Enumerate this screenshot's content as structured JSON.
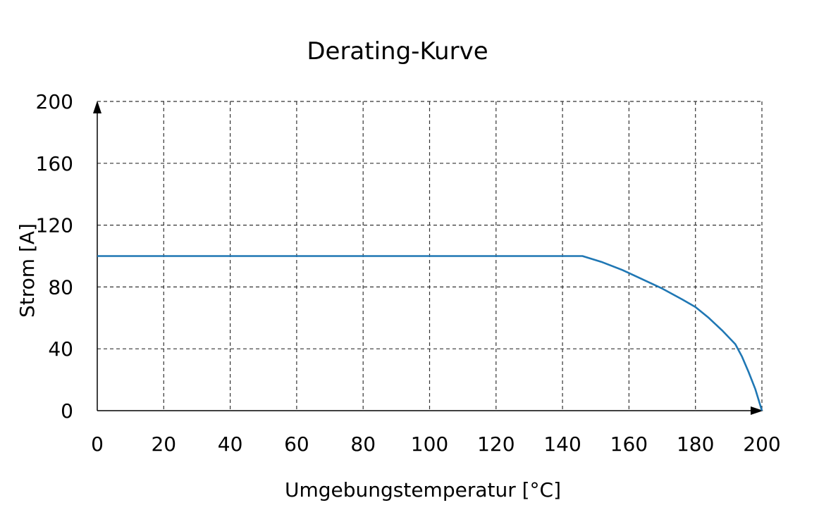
{
  "chart_data": {
    "type": "line",
    "title": "Derating-Kurve",
    "xlabel": "Umgebungstemperatur [°C]",
    "ylabel": "Strom [A]",
    "xlim": [
      0,
      200
    ],
    "ylim": [
      0,
      200
    ],
    "x_ticks": [
      0,
      20,
      40,
      60,
      80,
      100,
      120,
      140,
      160,
      180,
      200
    ],
    "y_ticks": [
      0,
      40,
      80,
      120,
      160,
      200
    ],
    "grid": true,
    "grid_style": "dashed",
    "series": [
      {
        "color": "#1f77b4",
        "x": [
          0,
          146,
          152,
          158,
          164,
          170,
          176,
          180,
          184,
          188,
          192,
          194,
          196,
          198,
          200
        ],
        "y": [
          100,
          100,
          96,
          91,
          85,
          79,
          72,
          67,
          60,
          52,
          43,
          35,
          25,
          14,
          0
        ]
      }
    ]
  }
}
